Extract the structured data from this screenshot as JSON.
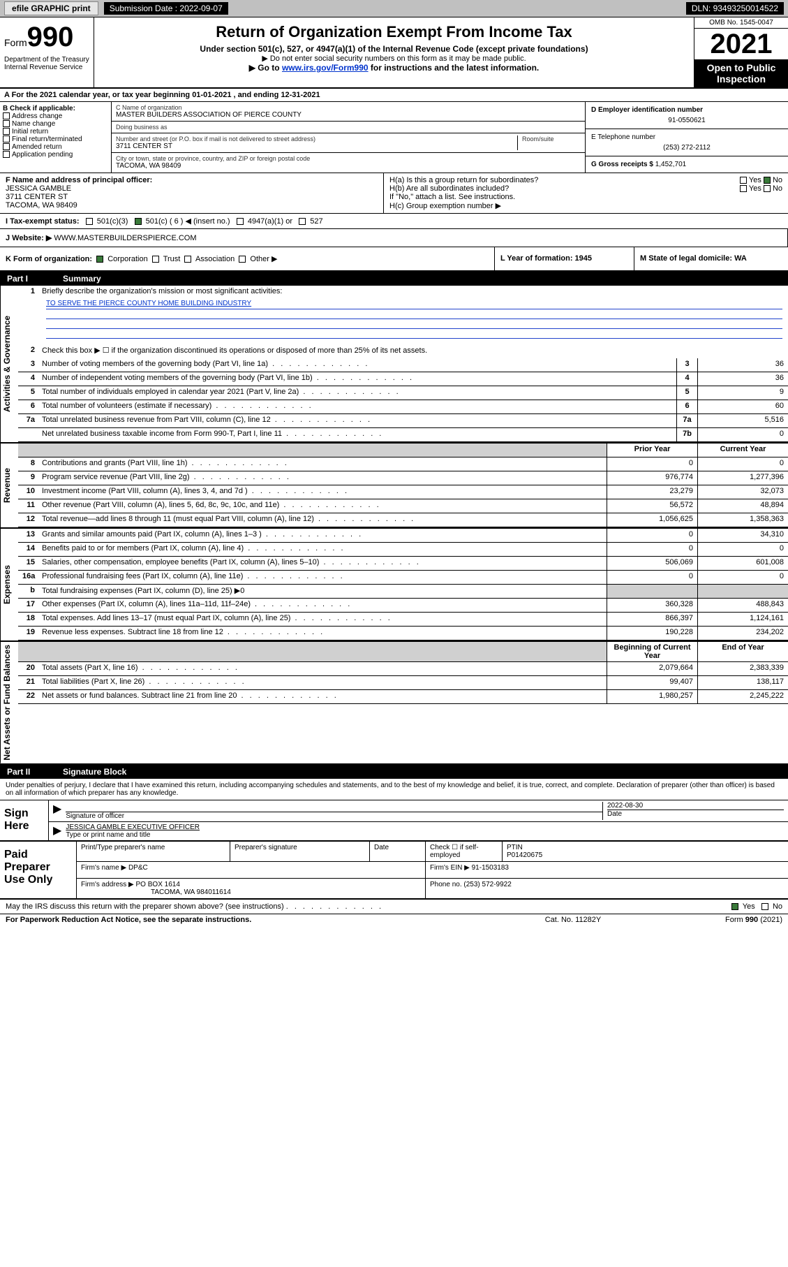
{
  "topbar": {
    "efile": "efile GRAPHIC print",
    "subdate_lbl": "Submission Date : 2022-09-07",
    "dln": "DLN: 93493250014522"
  },
  "header": {
    "form_word": "Form",
    "form_num": "990",
    "title": "Return of Organization Exempt From Income Tax",
    "sub1": "Under section 501(c), 527, or 4947(a)(1) of the Internal Revenue Code (except private foundations)",
    "sub2": "▶ Do not enter social security numbers on this form as it may be made public.",
    "sub3_pre": "▶ Go to ",
    "sub3_link": "www.irs.gov/Form990",
    "sub3_post": " for instructions and the latest information.",
    "dept": "Department of the Treasury\nInternal Revenue Service",
    "omb": "OMB No. 1545-0047",
    "year": "2021",
    "open": "Open to Public Inspection"
  },
  "line_a": "A For the 2021 calendar year, or tax year beginning 01-01-2021   , and ending 12-31-2021",
  "col_b": {
    "hdr": "B Check if applicable:",
    "items": [
      "Address change",
      "Name change",
      "Initial return",
      "Final return/terminated",
      "Amended return",
      "Application pending"
    ]
  },
  "col_c": {
    "name_lbl": "C Name of organization",
    "name": "MASTER BUILDERS ASSOCIATION OF PIERCE COUNTY",
    "dba_lbl": "Doing business as",
    "dba": "",
    "addr_lbl": "Number and street (or P.O. box if mail is not delivered to street address)",
    "room_lbl": "Room/suite",
    "addr": "3711 CENTER ST",
    "city_lbl": "City or town, state or province, country, and ZIP or foreign postal code",
    "city": "TACOMA, WA  98409"
  },
  "col_de": {
    "ein_lbl": "D Employer identification number",
    "ein": "91-0550621",
    "tel_lbl": "E Telephone number",
    "tel": "(253) 272-2112",
    "gross_lbl": "G Gross receipts $",
    "gross": "1,452,701"
  },
  "row_f": {
    "f_lbl": "F Name and address of principal officer:",
    "f_name": "JESSICA GAMBLE",
    "f_addr1": "3711 CENTER ST",
    "f_addr2": "TACOMA, WA  98409",
    "ha": "H(a)  Is this a group return for subordinates?",
    "ha_yes": "Yes",
    "ha_no": "No",
    "hb": "H(b)  Are all subordinates included?",
    "hb_note": "If \"No,\" attach a list. See instructions.",
    "hc": "H(c)  Group exemption number ▶"
  },
  "row_i": {
    "lbl": "I Tax-exempt status:",
    "o1": "501(c)(3)",
    "o2": "501(c) ( 6 ) ◀ (insert no.)",
    "o3": "4947(a)(1) or",
    "o4": "527"
  },
  "row_j": {
    "lbl": "J   Website: ▶",
    "val": "WWW.MASTERBUILDERSPIERCE.COM"
  },
  "row_k": {
    "k1": "K Form of organization:",
    "opts": [
      "Corporation",
      "Trust",
      "Association",
      "Other ▶"
    ],
    "l": "L Year of formation: 1945",
    "m": "M State of legal domicile: WA"
  },
  "part1": {
    "num": "Part I",
    "title": "Summary"
  },
  "summary": {
    "q1": "Briefly describe the organization's mission or most significant activities:",
    "mission": "TO SERVE THE PIERCE COUNTY HOME BUILDING INDUSTRY",
    "q2": "Check this box ▶ ☐  if the organization discontinued its operations or disposed of more than 25% of its net assets.",
    "rows_gov": [
      {
        "n": "3",
        "t": "Number of voting members of the governing body (Part VI, line 1a)",
        "box": "3",
        "v": "36"
      },
      {
        "n": "4",
        "t": "Number of independent voting members of the governing body (Part VI, line 1b)",
        "box": "4",
        "v": "36"
      },
      {
        "n": "5",
        "t": "Total number of individuals employed in calendar year 2021 (Part V, line 2a)",
        "box": "5",
        "v": "9"
      },
      {
        "n": "6",
        "t": "Total number of volunteers (estimate if necessary)",
        "box": "6",
        "v": "60"
      },
      {
        "n": "7a",
        "t": "Total unrelated business revenue from Part VIII, column (C), line 12",
        "box": "7a",
        "v": "5,516"
      },
      {
        "n": "",
        "t": "Net unrelated business taxable income from Form 990-T, Part I, line 11",
        "box": "7b",
        "v": "0"
      }
    ],
    "col_hdr_prior": "Prior Year",
    "col_hdr_curr": "Current Year",
    "rows_rev": [
      {
        "n": "8",
        "t": "Contributions and grants (Part VIII, line 1h)",
        "p": "0",
        "c": "0"
      },
      {
        "n": "9",
        "t": "Program service revenue (Part VIII, line 2g)",
        "p": "976,774",
        "c": "1,277,396"
      },
      {
        "n": "10",
        "t": "Investment income (Part VIII, column (A), lines 3, 4, and 7d )",
        "p": "23,279",
        "c": "32,073"
      },
      {
        "n": "11",
        "t": "Other revenue (Part VIII, column (A), lines 5, 6d, 8c, 9c, 10c, and 11e)",
        "p": "56,572",
        "c": "48,894"
      },
      {
        "n": "12",
        "t": "Total revenue—add lines 8 through 11 (must equal Part VIII, column (A), line 12)",
        "p": "1,056,625",
        "c": "1,358,363"
      }
    ],
    "rows_exp": [
      {
        "n": "13",
        "t": "Grants and similar amounts paid (Part IX, column (A), lines 1–3 )",
        "p": "0",
        "c": "34,310"
      },
      {
        "n": "14",
        "t": "Benefits paid to or for members (Part IX, column (A), line 4)",
        "p": "0",
        "c": "0"
      },
      {
        "n": "15",
        "t": "Salaries, other compensation, employee benefits (Part IX, column (A), lines 5–10)",
        "p": "506,069",
        "c": "601,008"
      },
      {
        "n": "16a",
        "t": "Professional fundraising fees (Part IX, column (A), line 11e)",
        "p": "0",
        "c": "0"
      },
      {
        "n": "b",
        "t": "Total fundraising expenses (Part IX, column (D), line 25) ▶0",
        "p": "",
        "c": "",
        "grey": true
      },
      {
        "n": "17",
        "t": "Other expenses (Part IX, column (A), lines 11a–11d, 11f–24e)",
        "p": "360,328",
        "c": "488,843"
      },
      {
        "n": "18",
        "t": "Total expenses. Add lines 13–17 (must equal Part IX, column (A), line 25)",
        "p": "866,397",
        "c": "1,124,161"
      },
      {
        "n": "19",
        "t": "Revenue less expenses. Subtract line 18 from line 12",
        "p": "190,228",
        "c": "234,202"
      }
    ],
    "col_hdr_beg": "Beginning of Current Year",
    "col_hdr_end": "End of Year",
    "rows_net": [
      {
        "n": "20",
        "t": "Total assets (Part X, line 16)",
        "p": "2,079,664",
        "c": "2,383,339"
      },
      {
        "n": "21",
        "t": "Total liabilities (Part X, line 26)",
        "p": "99,407",
        "c": "138,117"
      },
      {
        "n": "22",
        "t": "Net assets or fund balances. Subtract line 21 from line 20",
        "p": "1,980,257",
        "c": "2,245,222"
      }
    ],
    "vtab_gov": "Activities & Governance",
    "vtab_rev": "Revenue",
    "vtab_exp": "Expenses",
    "vtab_net": "Net Assets or Fund Balances"
  },
  "part2": {
    "num": "Part II",
    "title": "Signature Block"
  },
  "sig": {
    "decl": "Under penalties of perjury, I declare that I have examined this return, including accompanying schedules and statements, and to the best of my knowledge and belief, it is true, correct, and complete. Declaration of preparer (other than officer) is based on all information of which preparer has any knowledge.",
    "sign_here": "Sign Here",
    "sig_lbl": "Signature of officer",
    "date_lbl": "Date",
    "date_val": "2022-08-30",
    "name": "JESSICA GAMBLE  EXECUTIVE OFFICER",
    "name_lbl": "Type or print name and title"
  },
  "paid": {
    "title": "Paid Preparer Use Only",
    "h1": "Print/Type preparer's name",
    "h2": "Preparer's signature",
    "h3": "Date",
    "h4_chk": "Check ☐ if self-employed",
    "h5": "PTIN",
    "ptin": "P01420675",
    "firm_lbl": "Firm's name   ▶",
    "firm": "DP&C",
    "ein_lbl": "Firm's EIN ▶",
    "ein": "91-1503183",
    "addr_lbl": "Firm's address ▶",
    "addr1": "PO BOX 1614",
    "addr2": "TACOMA, WA  984011614",
    "phone_lbl": "Phone no.",
    "phone": "(253) 572-9922"
  },
  "foot": {
    "q": "May the IRS discuss this return with the preparer shown above? (see instructions)",
    "yes": "Yes",
    "no": "No",
    "pra": "For Paperwork Reduction Act Notice, see the separate instructions.",
    "cat": "Cat. No. 11282Y",
    "form": "Form 990 (2021)"
  }
}
